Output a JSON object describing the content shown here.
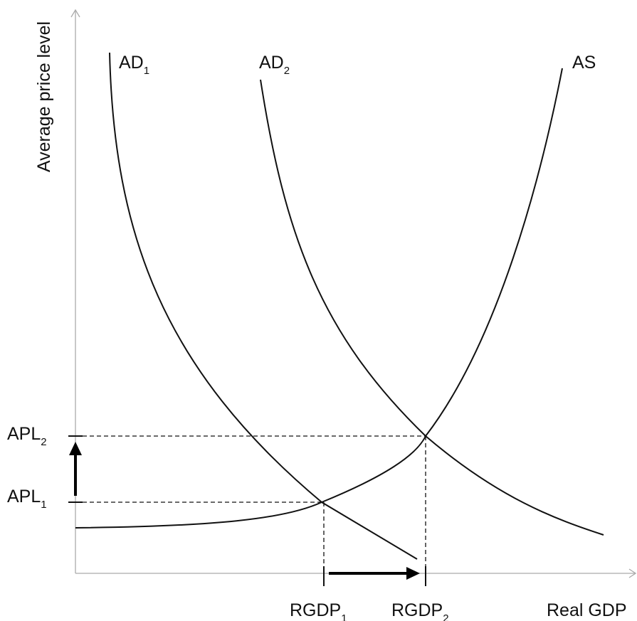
{
  "axes": {
    "y_label": "Average price level",
    "x_label": "Real GDP"
  },
  "curves": {
    "ad1": {
      "base": "AD",
      "sub": "1"
    },
    "ad2": {
      "base": "AD",
      "sub": "2"
    },
    "as": {
      "base": "AS"
    }
  },
  "price_levels": {
    "apl1": {
      "base": "APL",
      "sub": "1"
    },
    "apl2": {
      "base": "APL",
      "sub": "2"
    }
  },
  "output_levels": {
    "rgdp1": {
      "base": "RGDP",
      "sub": "1"
    },
    "rgdp2": {
      "base": "RGDP",
      "sub": "2"
    }
  },
  "colors": {
    "line": "#111111",
    "axis": "#aaaaaa",
    "background": "#ffffff"
  }
}
